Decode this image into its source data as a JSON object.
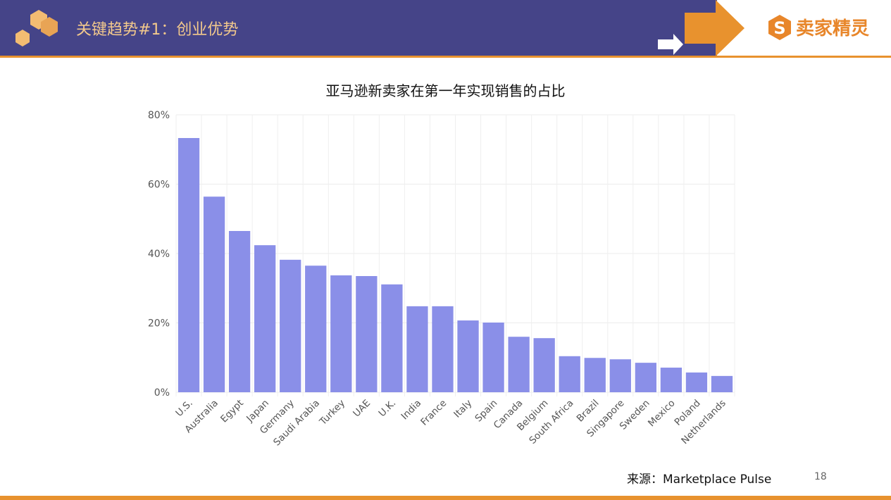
{
  "header": {
    "title": "关键趋势#1：创业优势",
    "logo_text": "卖家精灵"
  },
  "colors": {
    "header_bg": "#454488",
    "accent": "#e8922e",
    "bar": "#8a8fe8",
    "title_text": "#f3c98c"
  },
  "chart_data": {
    "type": "bar",
    "title": "亚马逊新卖家在第一年实现销售的占比",
    "xlabel": "",
    "ylabel": "",
    "ylim": [
      0,
      80
    ],
    "yticks": [
      "0%",
      "20%",
      "40%",
      "60%",
      "80%"
    ],
    "grid": true,
    "categories": [
      "U.S.",
      "Australia",
      "Egypt",
      "Japan",
      "Germany",
      "Saudi Arabia",
      "Turkey",
      "UAE",
      "U.K.",
      "India",
      "France",
      "Italy",
      "Spain",
      "Canada",
      "Belgium",
      "South Africa",
      "Brazil",
      "Singapore",
      "Sweden",
      "Mexico",
      "Poland",
      "Netherlands"
    ],
    "values": [
      73.3,
      56.4,
      46.5,
      42.4,
      38.2,
      36.5,
      33.7,
      33.5,
      31.1,
      24.8,
      24.8,
      20.7,
      20.1,
      16.0,
      15.6,
      10.4,
      9.9,
      9.5,
      8.5,
      7.1,
      5.7,
      4.7
    ]
  },
  "footer": {
    "source": "来源：Marketplace Pulse",
    "page_number": "18"
  }
}
